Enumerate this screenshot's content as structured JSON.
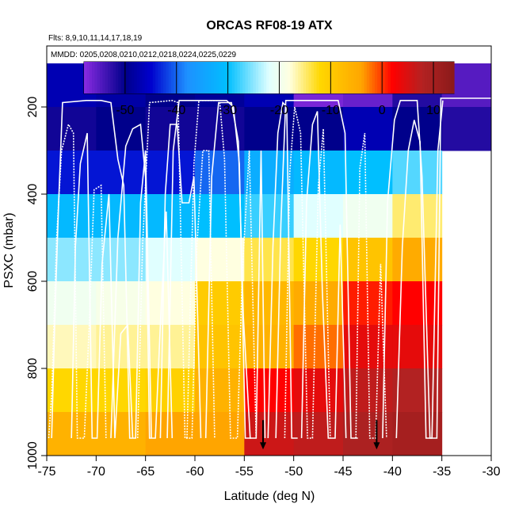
{
  "chart_data": {
    "type": "heatmap",
    "title": "ORCAS RF08-19 ATX",
    "subtitle_flights": "Flts: 8,9,10,11,14,17,18,19",
    "subtitle_dates": "MMDD: 0205,0208,0210,0212,0218,0224,0225,0229",
    "xlabel": "Latitude (deg N)",
    "ylabel": "PSXC (mbar)",
    "xlim": [
      -75,
      -30
    ],
    "ylim": [
      1000,
      60
    ],
    "x_ticks": [
      -75,
      -70,
      -65,
      -60,
      -55,
      -50,
      -45,
      -40,
      -35,
      -30
    ],
    "y_ticks": [
      200,
      400,
      600,
      800,
      1000
    ],
    "colorbar": {
      "range": [
        -58,
        14
      ],
      "ticks": [
        -50,
        -40,
        -30,
        -20,
        -10,
        0,
        10
      ],
      "divisions": [
        -50,
        -40,
        -30,
        -20,
        -10,
        0,
        10
      ],
      "colors": [
        "#8a2be2",
        "#00008b",
        "#0000cd",
        "#1e90ff",
        "#00bfff",
        "#e0ffff",
        "#ffffe0",
        "#ffd700",
        "#ffa500",
        "#ff0000",
        "#b22222",
        "#8b1a1a"
      ],
      "color_positions": [
        -58,
        -50,
        -45,
        -38,
        -30,
        -22,
        -18,
        -12,
        -4,
        2,
        8,
        14
      ]
    },
    "cell_lat_width": 5,
    "cell_p_height": 100,
    "cells": [
      {
        "lat": -75,
        "p": 100,
        "value": -47
      },
      {
        "lat": -70,
        "p": 100,
        "value": -48
      },
      {
        "lat": -65,
        "p": 100,
        "value": -50
      },
      {
        "lat": -60,
        "p": 100,
        "value": -49
      },
      {
        "lat": -55,
        "p": 100,
        "value": -47
      },
      {
        "lat": -50,
        "p": 100,
        "value": -57
      },
      {
        "lat": -45,
        "p": 100,
        "value": -56
      },
      {
        "lat": -40,
        "p": 100,
        "value": -52
      },
      {
        "lat": -35,
        "p": 100,
        "value": -55
      },
      {
        "lat": -75,
        "p": 200,
        "value": -51
      },
      {
        "lat": -70,
        "p": 200,
        "value": -50
      },
      {
        "lat": -65,
        "p": 200,
        "value": -51
      },
      {
        "lat": -60,
        "p": 200,
        "value": -51
      },
      {
        "lat": -55,
        "p": 200,
        "value": -50
      },
      {
        "lat": -50,
        "p": 200,
        "value": -50
      },
      {
        "lat": -45,
        "p": 200,
        "value": -47
      },
      {
        "lat": -40,
        "p": 200,
        "value": -50
      },
      {
        "lat": -35,
        "p": 200,
        "value": -52
      },
      {
        "lat": -75,
        "p": 300,
        "value": -44
      },
      {
        "lat": -70,
        "p": 300,
        "value": -44
      },
      {
        "lat": -65,
        "p": 300,
        "value": -44
      },
      {
        "lat": -60,
        "p": 300,
        "value": -40
      },
      {
        "lat": -55,
        "p": 300,
        "value": -33
      },
      {
        "lat": -50,
        "p": 300,
        "value": -31
      },
      {
        "lat": -45,
        "p": 300,
        "value": -30
      },
      {
        "lat": -40,
        "p": 300,
        "value": -27
      },
      {
        "lat": -75,
        "p": 400,
        "value": -31
      },
      {
        "lat": -70,
        "p": 400,
        "value": -31
      },
      {
        "lat": -65,
        "p": 400,
        "value": -31
      },
      {
        "lat": -60,
        "p": 400,
        "value": -30
      },
      {
        "lat": -55,
        "p": 400,
        "value": -28
      },
      {
        "lat": -50,
        "p": 400,
        "value": -22
      },
      {
        "lat": -45,
        "p": 400,
        "value": -20
      },
      {
        "lat": -40,
        "p": 400,
        "value": -15
      },
      {
        "lat": -75,
        "p": 500,
        "value": -25
      },
      {
        "lat": -70,
        "p": 500,
        "value": -25
      },
      {
        "lat": -65,
        "p": 500,
        "value": -22
      },
      {
        "lat": -60,
        "p": 500,
        "value": -18
      },
      {
        "lat": -55,
        "p": 500,
        "value": -14
      },
      {
        "lat": -50,
        "p": 500,
        "value": -12
      },
      {
        "lat": -45,
        "p": 500,
        "value": -9
      },
      {
        "lat": -40,
        "p": 500,
        "value": -5
      },
      {
        "lat": -75,
        "p": 600,
        "value": -20
      },
      {
        "lat": -70,
        "p": 600,
        "value": -19
      },
      {
        "lat": -65,
        "p": 600,
        "value": -18
      },
      {
        "lat": -60,
        "p": 600,
        "value": -10
      },
      {
        "lat": -55,
        "p": 600,
        "value": -7
      },
      {
        "lat": -50,
        "p": 600,
        "value": -5
      },
      {
        "lat": -45,
        "p": 600,
        "value": 1
      },
      {
        "lat": -40,
        "p": 600,
        "value": 2
      },
      {
        "lat": -75,
        "p": 700,
        "value": -17
      },
      {
        "lat": -70,
        "p": 700,
        "value": -16
      },
      {
        "lat": -65,
        "p": 700,
        "value": -16
      },
      {
        "lat": -60,
        "p": 700,
        "value": -9
      },
      {
        "lat": -55,
        "p": 700,
        "value": -6
      },
      {
        "lat": -50,
        "p": 700,
        "value": -2
      },
      {
        "lat": -45,
        "p": 700,
        "value": 4
      },
      {
        "lat": -40,
        "p": 700,
        "value": 4
      },
      {
        "lat": -75,
        "p": 800,
        "value": -12
      },
      {
        "lat": -70,
        "p": 800,
        "value": -12
      },
      {
        "lat": -65,
        "p": 800,
        "value": -11
      },
      {
        "lat": -60,
        "p": 800,
        "value": -6
      },
      {
        "lat": -55,
        "p": 800,
        "value": 2
      },
      {
        "lat": -50,
        "p": 800,
        "value": 4
      },
      {
        "lat": -45,
        "p": 800,
        "value": 7
      },
      {
        "lat": -40,
        "p": 800,
        "value": 8
      },
      {
        "lat": -75,
        "p": 900,
        "value": -6
      },
      {
        "lat": -70,
        "p": 900,
        "value": -6
      },
      {
        "lat": -65,
        "p": 900,
        "value": -4
      },
      {
        "lat": -60,
        "p": 900,
        "value": -4
      },
      {
        "lat": -55,
        "p": 900,
        "value": 6
      },
      {
        "lat": -50,
        "p": 900,
        "value": 7
      },
      {
        "lat": -45,
        "p": 900,
        "value": 9
      },
      {
        "lat": -40,
        "p": 900,
        "value": 10
      }
    ],
    "flight_tracks": [
      [
        [
          -74.5,
          960
        ],
        [
          -74.2,
          700
        ],
        [
          -73.8,
          420
        ],
        [
          -73.4,
          190
        ],
        [
          -71,
          185
        ],
        [
          -69.5,
          185
        ],
        [
          -68.5,
          190
        ],
        [
          -67.8,
          320
        ],
        [
          -67.2,
          380
        ],
        [
          -66.6,
          960
        ],
        [
          -66,
          960
        ],
        [
          -65.5,
          420
        ],
        [
          -65,
          300
        ],
        [
          -64.4,
          960
        ]
      ],
      [
        [
          -74.8,
          960
        ],
        [
          -74.5,
          860
        ],
        [
          -74,
          500
        ],
        [
          -73.5,
          300
        ],
        [
          -72.8,
          240
        ],
        [
          -72.3,
          260
        ],
        [
          -71.9,
          960
        ],
        [
          -71.2,
          960
        ],
        [
          -70.7,
          700
        ],
        [
          -70.2,
          390
        ],
        [
          -69.5,
          380
        ],
        [
          -69,
          960
        ]
      ],
      [
        [
          -72.5,
          960
        ],
        [
          -72.1,
          520
        ],
        [
          -71.6,
          330
        ],
        [
          -70.9,
          260
        ],
        [
          -70.4,
          960
        ],
        [
          -69.9,
          960
        ],
        [
          -69.4,
          560
        ],
        [
          -68.7,
          400
        ],
        [
          -68.1,
          960
        ],
        [
          -67.5,
          720
        ],
        [
          -66.8,
          700
        ],
        [
          -66.3,
          960
        ]
      ],
      [
        [
          -68.5,
          960
        ],
        [
          -67.8,
          500
        ],
        [
          -67,
          290
        ],
        [
          -66.3,
          250
        ],
        [
          -65.5,
          240
        ],
        [
          -65,
          360
        ],
        [
          -64.6,
          960
        ],
        [
          -64,
          960
        ],
        [
          -63.5,
          700
        ],
        [
          -62.9,
          440
        ],
        [
          -62.3,
          960
        ]
      ],
      [
        [
          -65.8,
          960
        ],
        [
          -65.3,
          520
        ],
        [
          -64.6,
          190
        ],
        [
          -62.3,
          185
        ],
        [
          -61.7,
          190
        ],
        [
          -61,
          960
        ],
        [
          -60.3,
          960
        ],
        [
          -59.8,
          520
        ],
        [
          -59.2,
          300
        ],
        [
          -58.6,
          300
        ],
        [
          -58,
          960
        ]
      ],
      [
        [
          -63.5,
          960
        ],
        [
          -63,
          400
        ],
        [
          -62.5,
          240
        ],
        [
          -61.8,
          240
        ],
        [
          -61.3,
          420
        ],
        [
          -60.6,
          420
        ],
        [
          -60.1,
          360
        ],
        [
          -59.4,
          960
        ]
      ],
      [
        [
          -62.8,
          960
        ],
        [
          -62.2,
          300
        ],
        [
          -61.6,
          185
        ],
        [
          -56.8,
          185
        ],
        [
          -56.1,
          200
        ],
        [
          -55.5,
          330
        ],
        [
          -54.9,
          960
        ],
        [
          -54.3,
          960
        ]
      ],
      [
        [
          -60.8,
          960
        ],
        [
          -60.1,
          330
        ],
        [
          -59.6,
          185
        ],
        [
          -57.5,
          185
        ],
        [
          -57,
          320
        ],
        [
          -56.4,
          960
        ],
        [
          -55.7,
          960
        ],
        [
          -55.2,
          580
        ],
        [
          -54.5,
          300
        ],
        [
          -53.8,
          960
        ]
      ],
      [
        [
          -58.9,
          960
        ],
        [
          -58.3,
          360
        ],
        [
          -57.6,
          190
        ],
        [
          -56.3,
          190
        ],
        [
          -55.6,
          280
        ],
        [
          -55.1,
          680
        ],
        [
          -54.4,
          960
        ],
        [
          -53.8,
          960
        ],
        [
          -53.3,
          300
        ],
        [
          -52.9,
          960
        ]
      ],
      [
        [
          -51.8,
          960
        ],
        [
          -51.3,
          470
        ],
        [
          -50.8,
          185
        ],
        [
          -45.5,
          185
        ],
        [
          -44.8,
          260
        ],
        [
          -44.2,
          960
        ],
        [
          -43.5,
          960
        ]
      ],
      [
        [
          -50.9,
          960
        ],
        [
          -50.4,
          350
        ],
        [
          -49.9,
          200
        ],
        [
          -49.3,
          260
        ],
        [
          -48.6,
          960
        ],
        [
          -48.1,
          960
        ],
        [
          -47.5,
          380
        ],
        [
          -47,
          250
        ],
        [
          -46.3,
          960
        ]
      ],
      [
        [
          -49.2,
          960
        ],
        [
          -48.7,
          420
        ],
        [
          -48.1,
          240
        ],
        [
          -47.6,
          210
        ],
        [
          -47.1,
          620
        ],
        [
          -46.5,
          960
        ],
        [
          -45.8,
          960
        ],
        [
          -45.3,
          470
        ],
        [
          -44.7,
          960
        ]
      ],
      [
        [
          -52.6,
          960
        ],
        [
          -52.1,
          520
        ],
        [
          -51.6,
          260
        ],
        [
          -51.1,
          190
        ],
        [
          -50.7,
          200
        ],
        [
          -50.2,
          960
        ],
        [
          -49.6,
          960
        ]
      ],
      [
        [
          -43.7,
          960
        ],
        [
          -43.3,
          340
        ],
        [
          -42.8,
          260
        ],
        [
          -42.3,
          960
        ],
        [
          -41.7,
          960
        ],
        [
          -41.2,
          560
        ],
        [
          -40.6,
          960
        ]
      ],
      [
        [
          -41,
          960
        ],
        [
          -40.5,
          420
        ],
        [
          -39.8,
          230
        ],
        [
          -39.2,
          185
        ],
        [
          -37.5,
          185
        ],
        [
          -37,
          360
        ],
        [
          -36.2,
          960
        ],
        [
          -35.5,
          960
        ],
        [
          -35.1,
          180
        ],
        [
          -30,
          180
        ]
      ],
      [
        [
          -39.6,
          960
        ],
        [
          -39,
          520
        ],
        [
          -38.4,
          300
        ],
        [
          -37.8,
          230
        ],
        [
          -37.2,
          280
        ],
        [
          -36.6,
          960
        ],
        [
          -36,
          960
        ],
        [
          -35.4,
          300
        ],
        [
          -34.9,
          185
        ]
      ]
    ],
    "markers": [
      {
        "lat": -53.1,
        "p": 955,
        "label": "down-arrow"
      },
      {
        "lat": -41.6,
        "p": 955,
        "label": "down-arrow"
      }
    ]
  }
}
